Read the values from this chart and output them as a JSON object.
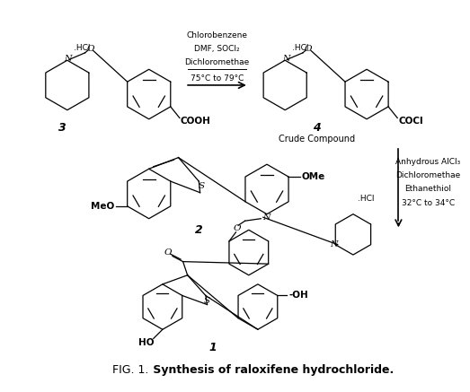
{
  "background_color": "#ffffff",
  "line_color": "#000000",
  "arrow_color": "#000000",
  "reagents_top": [
    "Chlorobenzene",
    "DMF, SOCl₂",
    "Dichloromethae",
    "75°C to 79°C"
  ],
  "reagents_right": [
    "Anhydrous AlCl₃",
    "Dichloromethae",
    "Ethanethiol",
    "32°C to 34°C"
  ],
  "label3": "3",
  "label4": "4",
  "label2": "2",
  "label1": "1",
  "crude": "Crude Compound",
  "title_normal": "FIG. 1.",
  "title_bold": " Synthesis of raloxifene hydrochloride.",
  "fig_width": 5.23,
  "fig_height": 4.37,
  "dpi": 100
}
